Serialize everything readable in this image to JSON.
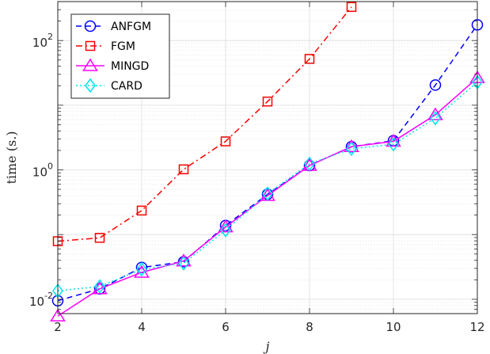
{
  "chart_data": {
    "type": "line",
    "xlabel": "j",
    "ylabel": "time (s.)",
    "xlim": [
      2,
      12
    ],
    "ylim": [
      0.006,
      400
    ],
    "yscale": "log",
    "grid": true,
    "minor_grid": true,
    "legend_position": "top-left",
    "x_ticks": [
      2,
      4,
      6,
      8,
      10,
      12
    ],
    "x_tick_labels": [
      "2",
      "4",
      "6",
      "8",
      "10",
      "12"
    ],
    "y_ticks": [
      0.01,
      1,
      100
    ],
    "y_tick_labels": [
      {
        "base": "10",
        "exp": "-2"
      },
      {
        "base": "10",
        "exp": "0"
      },
      {
        "base": "10",
        "exp": "2"
      }
    ],
    "series": [
      {
        "name": "ANFGM",
        "color": "#0000ff",
        "dash": "dashed",
        "marker": "circle",
        "x": [
          2,
          3,
          4,
          5,
          6,
          7,
          8,
          9,
          10,
          11,
          12
        ],
        "y": [
          0.0095,
          0.0145,
          0.031,
          0.038,
          0.138,
          0.42,
          1.17,
          2.28,
          2.83,
          20.5,
          175
        ]
      },
      {
        "name": "FGM",
        "color": "#ff0000",
        "dash": "dashdot",
        "marker": "square",
        "x": [
          2,
          3,
          4,
          5,
          6,
          7,
          8,
          9
        ],
        "y": [
          0.079,
          0.089,
          0.235,
          1.02,
          2.76,
          11.4,
          52,
          330
        ]
      },
      {
        "name": "MINGD",
        "color": "#ff00ff",
        "dash": "solid",
        "marker": "triangle",
        "x": [
          2,
          3,
          4,
          5,
          6,
          7,
          8,
          9,
          10,
          11,
          12
        ],
        "y": [
          0.0055,
          0.0145,
          0.026,
          0.039,
          0.131,
          0.4,
          1.17,
          2.28,
          2.76,
          7.1,
          26.5
        ]
      },
      {
        "name": "CARD",
        "color": "#00e5ee",
        "dash": "dotted",
        "marker": "diamond",
        "x": [
          2,
          3,
          4,
          5,
          6,
          7,
          8,
          9,
          10,
          11,
          12
        ],
        "y": [
          0.0135,
          0.0158,
          0.029,
          0.036,
          0.117,
          0.43,
          1.24,
          2.12,
          2.49,
          6.3,
          22.8
        ]
      }
    ]
  }
}
